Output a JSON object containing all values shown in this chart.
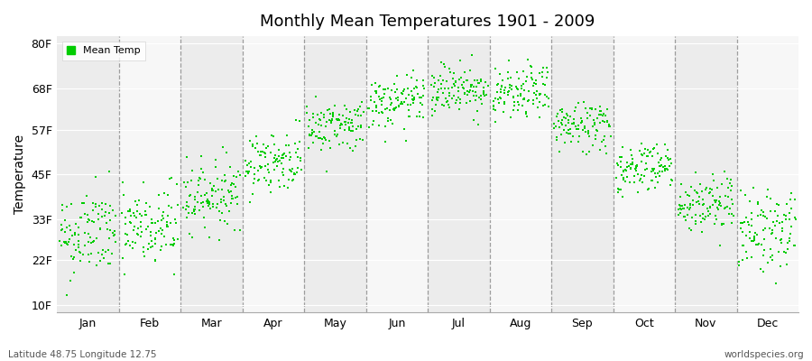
{
  "title": "Monthly Mean Temperatures 1901 - 2009",
  "ylabel": "Temperature",
  "bottom_left": "Latitude 48.75 Longitude 12.75",
  "bottom_right": "worldspecies.org",
  "legend_label": "Mean Temp",
  "dot_color": "#00CC00",
  "background_color": "#ffffff",
  "band_colors": [
    "#ececec",
    "#f7f7f7"
  ],
  "yticks": [
    10,
    22,
    33,
    45,
    57,
    68,
    80
  ],
  "ytick_labels": [
    "10F",
    "22F",
    "33F",
    "45F",
    "57F",
    "68F",
    "80F"
  ],
  "ylim": [
    8,
    82
  ],
  "months": [
    "Jan",
    "Feb",
    "Mar",
    "Apr",
    "May",
    "Jun",
    "Jul",
    "Aug",
    "Sep",
    "Oct",
    "Nov",
    "Dec"
  ],
  "n_years": 109,
  "mean_temps_f": [
    28.5,
    30.0,
    39.0,
    48.0,
    57.5,
    63.5,
    67.5,
    66.0,
    57.5,
    46.5,
    36.5,
    29.5
  ],
  "std_temps_f": [
    6.0,
    6.0,
    4.5,
    4.0,
    3.5,
    3.5,
    3.5,
    3.5,
    3.5,
    3.5,
    4.0,
    5.5
  ],
  "trend_per_year": [
    0.01,
    0.01,
    0.01,
    0.01,
    0.01,
    0.01,
    0.01,
    0.01,
    0.01,
    0.01,
    0.01,
    0.01
  ],
  "seed": 42,
  "dot_size": 3,
  "dashed_line_color": "#888888"
}
